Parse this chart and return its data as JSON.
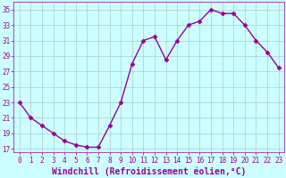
{
  "x": [
    0,
    1,
    2,
    3,
    4,
    5,
    6,
    7,
    8,
    9,
    10,
    11,
    12,
    13,
    14,
    15,
    16,
    17,
    18,
    19,
    20,
    21,
    22,
    23
  ],
  "y": [
    23,
    21,
    20,
    19,
    18,
    17.5,
    17.2,
    17.2,
    20,
    23,
    28,
    31,
    31.5,
    28.5,
    31,
    33,
    33.5,
    35,
    34.5,
    34.5,
    33,
    31,
    29.5,
    27.5
  ],
  "line_color": "#990099",
  "marker": "D",
  "marker_size": 2.5,
  "bg_color": "#ccffff",
  "grid_color": "#aacccc",
  "xlabel": "Windchill (Refroidissement éolien,°C)",
  "xlabel_fontsize": 7,
  "ytick_labels": [
    "17",
    "19",
    "21",
    "23",
    "25",
    "27",
    "29",
    "31",
    "33",
    "35"
  ],
  "ytick_values": [
    17,
    19,
    21,
    23,
    25,
    27,
    29,
    31,
    33,
    35
  ],
  "xtick_values": [
    0,
    1,
    2,
    3,
    4,
    5,
    6,
    7,
    8,
    9,
    10,
    11,
    12,
    13,
    14,
    15,
    16,
    17,
    18,
    19,
    20,
    21,
    22,
    23
  ],
  "xtick_labels": [
    "0",
    "1",
    "2",
    "3",
    "4",
    "5",
    "6",
    "7",
    "8",
    "9",
    "10",
    "11",
    "12",
    "13",
    "14",
    "15",
    "16",
    "17",
    "18",
    "19",
    "20",
    "21",
    "22",
    "23"
  ],
  "ylim": [
    16.5,
    36.0
  ],
  "xlim": [
    -0.5,
    23.5
  ],
  "tick_color": "#990099",
  "tick_fontsize": 5.5,
  "line_width": 1.0
}
